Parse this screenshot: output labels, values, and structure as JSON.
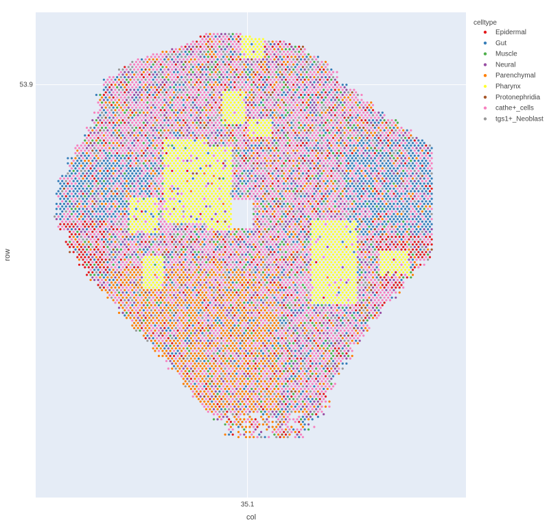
{
  "chart_data": {
    "type": "scatter",
    "title": "",
    "xlabel": "col",
    "ylabel": "row",
    "x_tick_labels": [
      {
        "value": 35.1,
        "label": "35.1"
      }
    ],
    "y_tick_labels": [
      {
        "value": 53.9,
        "label": "53.9"
      }
    ],
    "xlim": [
      25.6,
      44.9
    ],
    "ylim": [
      36.8,
      56.9
    ],
    "grid": true,
    "legend": {
      "title": "celltype",
      "placement": "right",
      "entries": [
        {
          "name": "Epidermal",
          "color": "#e41a1c"
        },
        {
          "name": "Gut",
          "color": "#377eb8"
        },
        {
          "name": "Muscle",
          "color": "#4daf4a"
        },
        {
          "name": "Neural",
          "color": "#984ea3"
        },
        {
          "name": "Parenchymal",
          "color": "#ff7f00"
        },
        {
          "name": "Pharynx",
          "color": "#ffff33"
        },
        {
          "name": "Protonephridia",
          "color": "#a65628"
        },
        {
          "name": "cathe+_cells",
          "color": "#f781bf"
        },
        {
          "name": "tgs1+_Neoblast",
          "color": "#999999"
        }
      ]
    },
    "point_grid": {
      "x_start": 26.45,
      "x_step": 0.17,
      "y_start": 56.0,
      "y_step": -0.105,
      "cols": 100,
      "rows": 160
    },
    "extent": {
      "y_top": 56.0,
      "y_bottom": 38.2,
      "width_profile": [
        {
          "y": 56.0,
          "x_min": 33.3,
          "x_max": 35.0
        },
        {
          "y": 55.5,
          "x_min": 32.2,
          "x_max": 37.5
        },
        {
          "y": 54.8,
          "x_min": 29.6,
          "x_max": 38.6
        },
        {
          "y": 53.9,
          "x_min": 28.6,
          "x_max": 39.5
        },
        {
          "y": 52.5,
          "x_min": 28.2,
          "x_max": 41.5
        },
        {
          "y": 50.8,
          "x_min": 27.2,
          "x_max": 44.4
        },
        {
          "y": 49.5,
          "x_min": 26.5,
          "x_max": 44.6
        },
        {
          "y": 48.3,
          "x_min": 26.5,
          "x_max": 44.0
        },
        {
          "y": 46.8,
          "x_min": 27.4,
          "x_max": 43.2
        },
        {
          "y": 45.5,
          "x_min": 28.4,
          "x_max": 42.0
        },
        {
          "y": 43.5,
          "x_min": 30.4,
          "x_max": 40.2
        },
        {
          "y": 41.5,
          "x_min": 32.2,
          "x_max": 39.0
        },
        {
          "y": 40.0,
          "x_min": 33.8,
          "x_max": 38.3
        },
        {
          "y": 38.2,
          "x_min": 35.0,
          "x_max": 36.0
        }
      ]
    },
    "regions": [
      {
        "celltype": "Pharynx",
        "x_range": [
          31.3,
          33.3
        ],
        "y_range": [
          48.2,
          51.6
        ]
      },
      {
        "celltype": "Pharynx",
        "x_range": [
          33.3,
          34.4
        ],
        "y_range": [
          47.9,
          51.3
        ]
      },
      {
        "celltype": "Pharynx",
        "x_range": [
          29.8,
          31.1
        ],
        "y_range": [
          47.8,
          49.2
        ]
      },
      {
        "celltype": "Pharynx",
        "x_range": [
          38.0,
          40.0
        ],
        "y_range": [
          44.8,
          48.3
        ]
      },
      {
        "celltype": "Pharynx",
        "x_range": [
          34.8,
          35.8
        ],
        "y_range": [
          55.0,
          56.1
        ]
      },
      {
        "celltype": "Pharynx",
        "x_range": [
          34.0,
          35.0
        ],
        "y_range": [
          52.3,
          53.6
        ]
      },
      {
        "celltype": "Pharynx",
        "x_range": [
          30.4,
          31.3
        ],
        "y_range": [
          45.4,
          46.8
        ]
      },
      {
        "celltype": "Pharynx",
        "x_range": [
          35.2,
          36.2
        ],
        "y_range": [
          51.7,
          52.5
        ]
      },
      {
        "celltype": "Pharynx",
        "x_range": [
          41.0,
          42.4
        ],
        "y_range": [
          46.0,
          47.0
        ]
      },
      {
        "celltype": "Parenchymal",
        "x_range": [
          28.8,
          36.5
        ],
        "y_range": [
          38.2,
          46.3
        ]
      },
      {
        "celltype": "Gut",
        "x_range": [
          39.5,
          44.6
        ],
        "y_range": [
          47.7,
          51.6
        ]
      },
      {
        "celltype": "Gut",
        "x_range": [
          26.5,
          31.0
        ],
        "y_range": [
          48.3,
          51.0
        ]
      },
      {
        "celltype": "Epidermal",
        "x_range": [
          41.0,
          44.4
        ],
        "y_range": [
          45.5,
          48.3
        ]
      },
      {
        "celltype": "Epidermal",
        "x_range": [
          26.5,
          28.7
        ],
        "y_range": [
          46.0,
          48.3
        ]
      },
      {
        "celltype": "cathe+_cells",
        "x_range": [
          26.5,
          44.6
        ],
        "y_range": [
          38.2,
          56.0
        ]
      }
    ],
    "hole": {
      "x_range": [
        34.4,
        35.3
      ],
      "y_range": [
        48.0,
        49.1
      ]
    }
  }
}
